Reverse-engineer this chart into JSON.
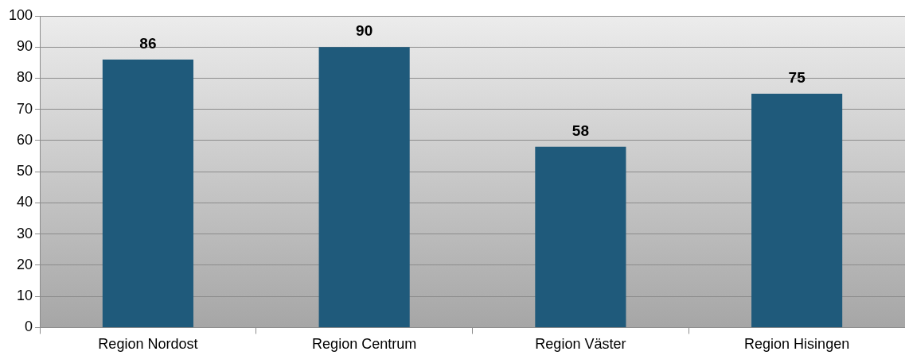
{
  "chart_data": {
    "type": "bar",
    "categories": [
      "Region Nordost",
      "Region Centrum",
      "Region Väster",
      "Region Hisingen"
    ],
    "values": [
      86,
      90,
      58,
      75
    ],
    "color": "#1f5a7b",
    "ylim": [
      0,
      100
    ],
    "yticks": [
      0,
      10,
      20,
      30,
      40,
      50,
      60,
      70,
      80,
      90,
      100
    ],
    "grid": "y",
    "data_labels": true
  }
}
